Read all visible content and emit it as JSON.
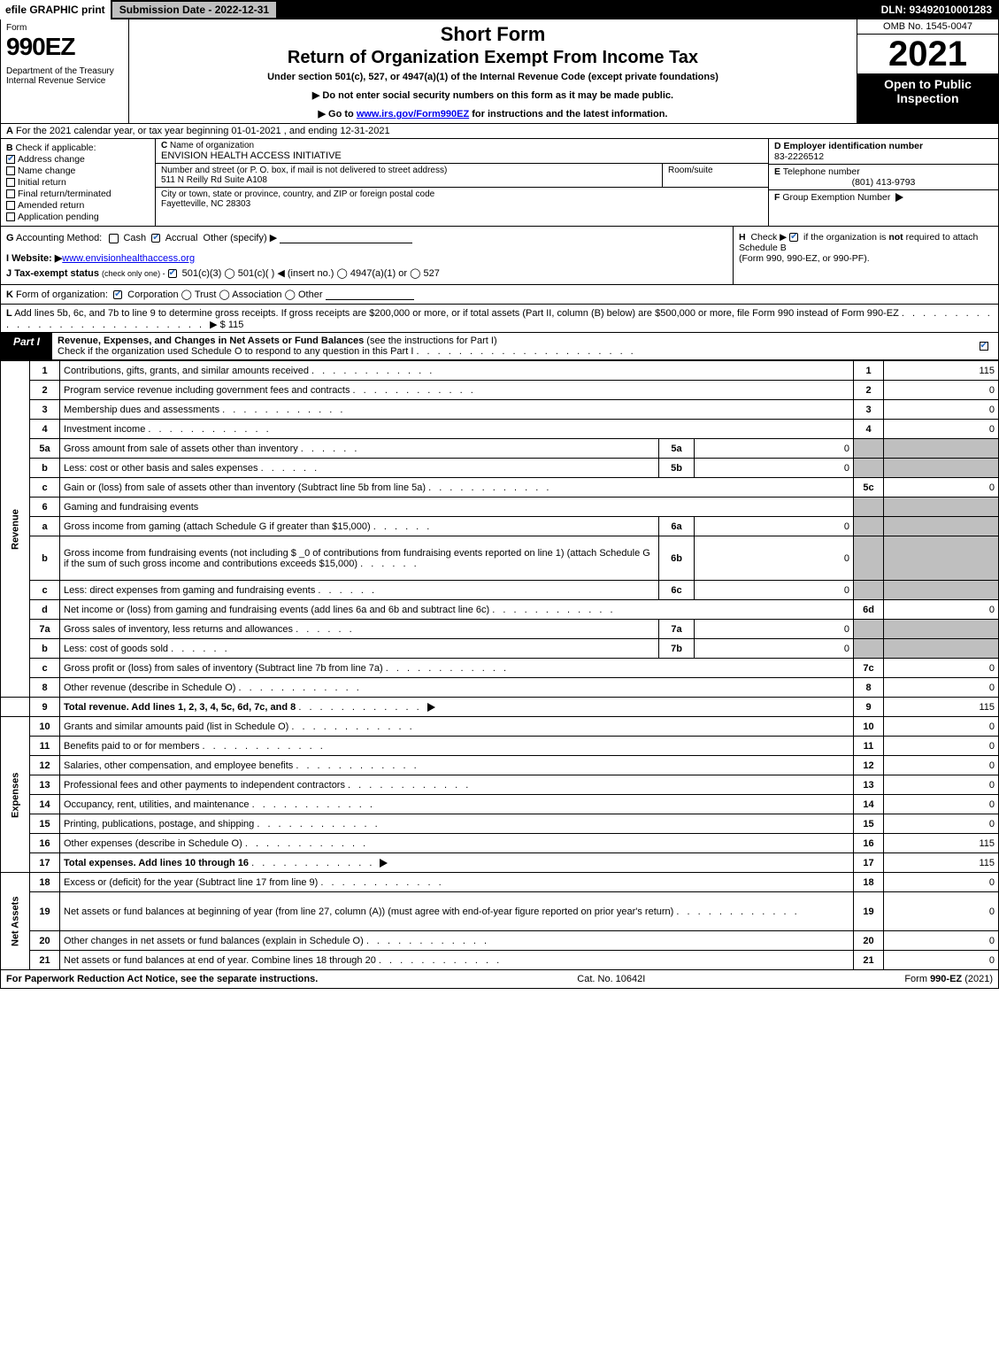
{
  "topbar": {
    "efile": "efile GRAPHIC print",
    "subdate_label": "Submission Date - 2022-12-31",
    "dln": "DLN: 93492010001283"
  },
  "header": {
    "form_word": "Form",
    "form_no": "990EZ",
    "dept": "Department of the Treasury\nInternal Revenue Service",
    "short": "Short Form",
    "title": "Return of Organization Exempt From Income Tax",
    "sub": "Under section 501(c), 527, or 4947(a)(1) of the Internal Revenue Code (except private foundations)",
    "note1": "▶ Do not enter social security numbers on this form as it may be made public.",
    "note2_prefix": "▶ Go to ",
    "note2_link": "www.irs.gov/Form990EZ",
    "note2_suffix": " for instructions and the latest information.",
    "omb": "OMB No. 1545-0047",
    "year": "2021",
    "open": "Open to Public Inspection"
  },
  "rowA": {
    "label": "A",
    "text": "For the 2021 calendar year, or tax year beginning 01-01-2021 , and ending 12-31-2021"
  },
  "colB": {
    "label": "B",
    "heading": "Check if applicable:",
    "items": [
      {
        "text": "Address change",
        "checked": true
      },
      {
        "text": "Name change",
        "checked": false
      },
      {
        "text": "Initial return",
        "checked": false
      },
      {
        "text": "Final return/terminated",
        "checked": false
      },
      {
        "text": "Amended return",
        "checked": false
      },
      {
        "text": "Application pending",
        "checked": false
      }
    ]
  },
  "cellC": {
    "label": "C",
    "heading": "Name of organization",
    "org_name": "ENVISION HEALTH ACCESS INITIATIVE",
    "addr_heading": "Number and street (or P. O. box, if mail is not delivered to street address)",
    "addr": "511 N Reilly Rd Suite A108",
    "room_heading": "Room/suite",
    "city_heading": "City or town, state or province, country, and ZIP or foreign postal code",
    "city": "Fayetteville, NC  28303"
  },
  "cellD": {
    "label": "D",
    "heading": "Employer identification number",
    "value": "83-2226512"
  },
  "cellE": {
    "label": "E",
    "heading": "Telephone number",
    "value": "(801) 413-9793"
  },
  "cellF": {
    "label": "F",
    "heading": "Group Exemption Number",
    "arrow": "▶"
  },
  "rowG": {
    "label": "G",
    "text": "Accounting Method:",
    "cash": "Cash",
    "accrual": "Accrual",
    "other": "Other (specify) ▶"
  },
  "rowH": {
    "label": "H",
    "text1": "Check ▶",
    "text2": "if the organization is ",
    "not": "not",
    "text3": " required to attach Schedule B",
    "text4": "(Form 990, 990-EZ, or 990-PF)."
  },
  "rowI": {
    "label": "I",
    "heading": "Website: ▶",
    "value": "www.envisionhealthaccess.org"
  },
  "rowJ": {
    "label": "J",
    "heading": "Tax-exempt status",
    "sub": "(check only one) -",
    "opts": " 501(c)(3)  ◯ 501(c)(  ) ◀ (insert no.)  ◯ 4947(a)(1) or  ◯ 527"
  },
  "rowK": {
    "label": "K",
    "text": "Form of organization:",
    "opts": " Corporation   ◯ Trust   ◯ Association   ◯ Other"
  },
  "rowL": {
    "label": "L",
    "text": "Add lines 5b, 6c, and 7b to line 9 to determine gross receipts. If gross receipts are $200,000 or more, or if total assets (Part II, column (B) below) are $500,000 or more, file Form 990 instead of Form 990-EZ",
    "arrow": "▶ $",
    "value": "115"
  },
  "partI": {
    "tab": "Part I",
    "title": "Revenue, Expenses, and Changes in Net Assets or Fund Balances",
    "instr": "(see the instructions for Part I)",
    "check_line": "Check if the organization used Schedule O to respond to any question in this Part I",
    "checked": true
  },
  "sections": {
    "revenue": "Revenue",
    "expenses": "Expenses",
    "netassets": "Net Assets"
  },
  "lines": [
    {
      "n": "1",
      "desc": "Contributions, gifts, grants, and similar amounts received",
      "rn": "1",
      "rv": "115",
      "side_start": "revenue",
      "side_span": 16
    },
    {
      "n": "2",
      "desc": "Program service revenue including government fees and contracts",
      "rn": "2",
      "rv": "0"
    },
    {
      "n": "3",
      "desc": "Membership dues and assessments",
      "rn": "3",
      "rv": "0"
    },
    {
      "n": "4",
      "desc": "Investment income",
      "rn": "4",
      "rv": "0"
    },
    {
      "n": "5a",
      "desc": "Gross amount from sale of assets other than inventory",
      "sl": "5a",
      "sv": "0",
      "grey": true
    },
    {
      "n": "b",
      "desc": "Less: cost or other basis and sales expenses",
      "sl": "5b",
      "sv": "0",
      "grey": true
    },
    {
      "n": "c",
      "desc": "Gain or (loss) from sale of assets other than inventory (Subtract line 5b from line 5a)",
      "rn": "5c",
      "rv": "0"
    },
    {
      "n": "6",
      "desc": "Gaming and fundraising events",
      "grey": true,
      "nor": true
    },
    {
      "n": "a",
      "desc": "Gross income from gaming (attach Schedule G if greater than $15,000)",
      "sl": "6a",
      "sv": "0",
      "grey": true
    },
    {
      "n": "b",
      "desc": "Gross income from fundraising events (not including $ _0          of contributions from fundraising events reported on line 1) (attach Schedule G if the sum of such gross income and contributions exceeds $15,000)",
      "sl": "6b",
      "sv": "0",
      "grey": true,
      "tall": true
    },
    {
      "n": "c",
      "desc": "Less: direct expenses from gaming and fundraising events",
      "sl": "6c",
      "sv": "0",
      "grey": true
    },
    {
      "n": "d",
      "desc": "Net income or (loss) from gaming and fundraising events (add lines 6a and 6b and subtract line 6c)",
      "rn": "6d",
      "rv": "0"
    },
    {
      "n": "7a",
      "desc": "Gross sales of inventory, less returns and allowances",
      "sl": "7a",
      "sv": "0",
      "grey": true
    },
    {
      "n": "b",
      "desc": "Less: cost of goods sold",
      "sl": "7b",
      "sv": "0",
      "grey": true
    },
    {
      "n": "c",
      "desc": "Gross profit or (loss) from sales of inventory (Subtract line 7b from line 7a)",
      "rn": "7c",
      "rv": "0"
    },
    {
      "n": "8",
      "desc": "Other revenue (describe in Schedule O)",
      "rn": "8",
      "rv": "0"
    },
    {
      "n": "9",
      "desc": "Total revenue. Add lines 1, 2, 3, 4, 5c, 6d, 7c, and 8",
      "rn": "9",
      "rv": "115",
      "bold": true,
      "arrow": true,
      "side_start": "gap",
      "side_span": 1,
      "gap": true
    },
    {
      "n": "10",
      "desc": "Grants and similar amounts paid (list in Schedule O)",
      "rn": "10",
      "rv": "0",
      "side_start": "expenses",
      "side_span": 8
    },
    {
      "n": "11",
      "desc": "Benefits paid to or for members",
      "rn": "11",
      "rv": "0"
    },
    {
      "n": "12",
      "desc": "Salaries, other compensation, and employee benefits",
      "rn": "12",
      "rv": "0"
    },
    {
      "n": "13",
      "desc": "Professional fees and other payments to independent contractors",
      "rn": "13",
      "rv": "0"
    },
    {
      "n": "14",
      "desc": "Occupancy, rent, utilities, and maintenance",
      "rn": "14",
      "rv": "0"
    },
    {
      "n": "15",
      "desc": "Printing, publications, postage, and shipping",
      "rn": "15",
      "rv": "0"
    },
    {
      "n": "16",
      "desc": "Other expenses (describe in Schedule O)",
      "rn": "16",
      "rv": "115"
    },
    {
      "n": "17",
      "desc": "Total expenses. Add lines 10 through 16",
      "rn": "17",
      "rv": "115",
      "bold": true,
      "arrow": true
    },
    {
      "n": "18",
      "desc": "Excess or (deficit) for the year (Subtract line 17 from line 9)",
      "rn": "18",
      "rv": "0",
      "side_start": "netassets",
      "side_span": 4
    },
    {
      "n": "19",
      "desc": "Net assets or fund balances at beginning of year (from line 27, column (A)) (must agree with end-of-year figure reported on prior year's return)",
      "rn": "19",
      "rv": "0",
      "tall": true
    },
    {
      "n": "20",
      "desc": "Other changes in net assets or fund balances (explain in Schedule O)",
      "rn": "20",
      "rv": "0"
    },
    {
      "n": "21",
      "desc": "Net assets or fund balances at end of year. Combine lines 18 through 20",
      "rn": "21",
      "rv": "0"
    }
  ],
  "footer": {
    "left": "For Paperwork Reduction Act Notice, see the separate instructions.",
    "mid": "Cat. No. 10642I",
    "right_prefix": "Form ",
    "right_form": "990-EZ",
    "right_suffix": " (2021)"
  },
  "colors": {
    "black": "#000000",
    "grey": "#bfbfbf",
    "link": "#1a5aa8",
    "check": "#2a6bbf"
  }
}
